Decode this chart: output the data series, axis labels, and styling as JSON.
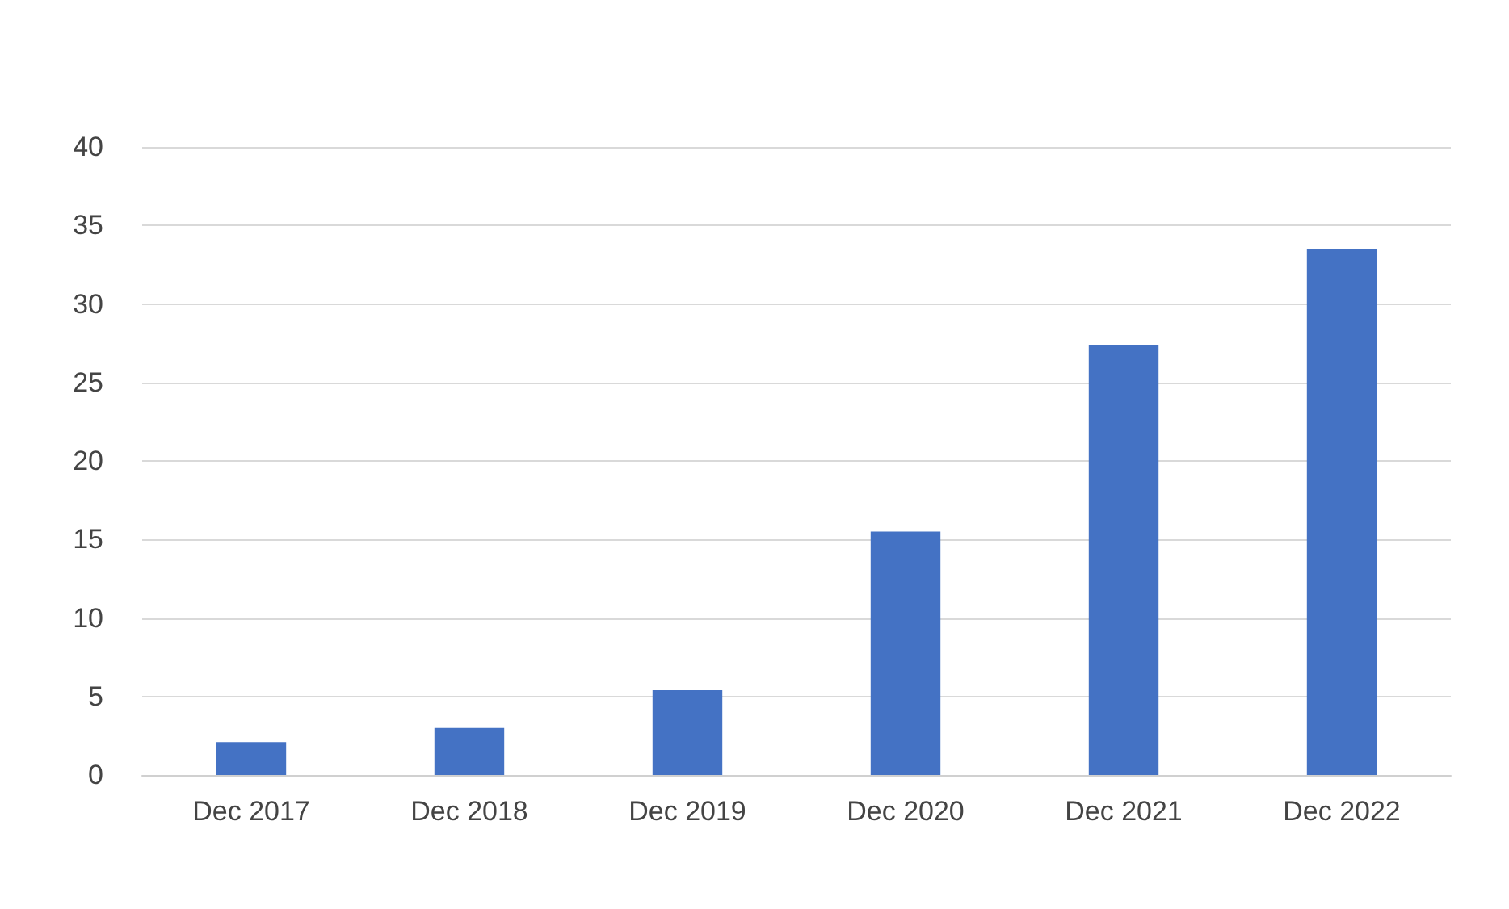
{
  "chart_data": {
    "type": "bar",
    "categories": [
      "Dec 2017",
      "Dec 2018",
      "Dec 2019",
      "Dec 2020",
      "Dec 2021",
      "Dec 2022"
    ],
    "values": [
      2.1,
      3.0,
      5.4,
      15.5,
      27.4,
      33.5
    ],
    "color": "#4472c4",
    "ylim": [
      0,
      40
    ],
    "yticks": [
      0,
      5,
      10,
      15,
      20,
      25,
      30,
      35,
      40
    ],
    "grid": "y"
  }
}
